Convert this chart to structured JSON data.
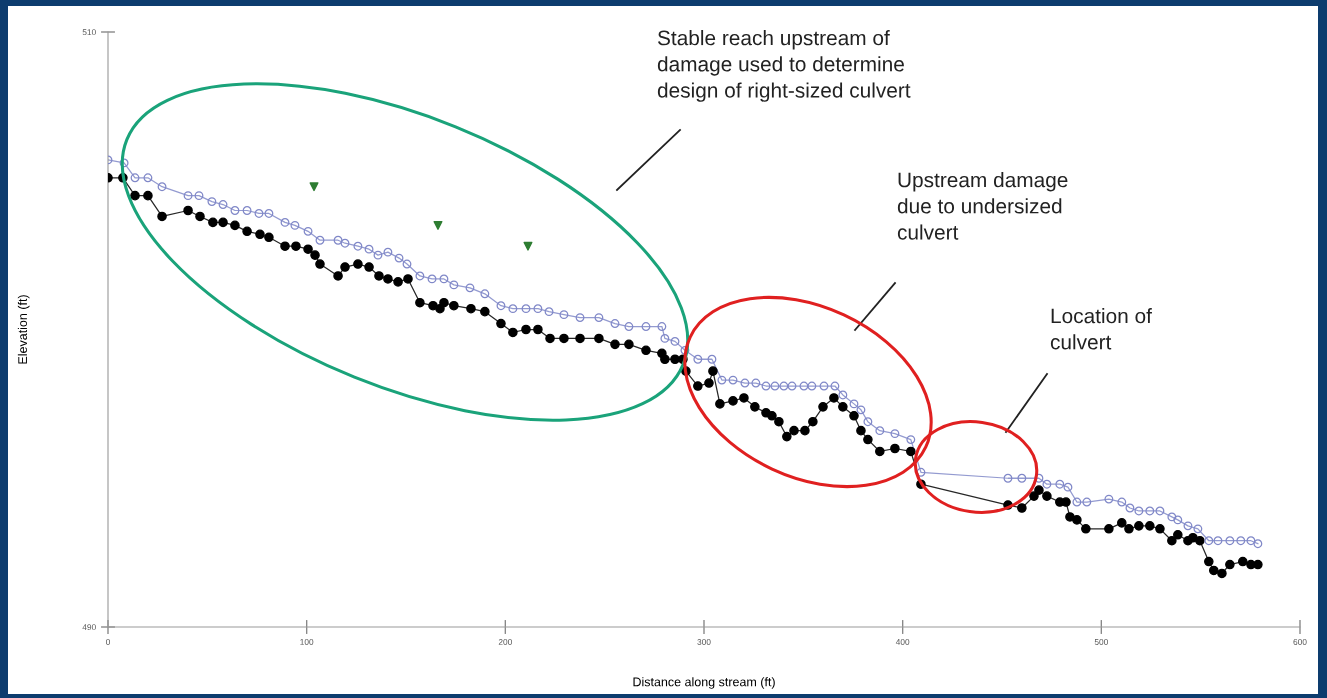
{
  "chart_data": {
    "type": "line",
    "xlabel": "Distance along stream (ft)",
    "ylabel": "Elevation (ft)",
    "xlim": [
      0,
      600
    ],
    "xticks": [
      0,
      100,
      200,
      300,
      400,
      500,
      600
    ],
    "ylim": [
      490,
      510
    ],
    "yticks": [
      490,
      510
    ],
    "grid": false,
    "legend": false,
    "series": [
      {
        "marker": "circle",
        "color": "#000000",
        "x": [
          0,
          7.5,
          13.6,
          20.1,
          27.2,
          40.3,
          46.3,
          52.8,
          57.9,
          63.9,
          70,
          76.5,
          81,
          89.1,
          94.6,
          100.7,
          104.2,
          106.7,
          115.8,
          119.3,
          125.8,
          131.4,
          136.4,
          140.9,
          146,
          151,
          157,
          163.6,
          167.1,
          169.1,
          174.1,
          182.7,
          189.7,
          197.8,
          203.8,
          210.4,
          216.4,
          222.5,
          229.5,
          237.6,
          247.1,
          255.2,
          262.2,
          270.8,
          278.8,
          280.3,
          285.4,
          289.4,
          290.9,
          296.9,
          302.5,
          304.5,
          308,
          314.6,
          320.1,
          325.6,
          331.2,
          334.2,
          337.7,
          341.7,
          345.3,
          350.8,
          354.8,
          359.9,
          365.4,
          369.9,
          375.5,
          379,
          382.5,
          388.5,
          396.1,
          404.1,
          409.2,
          453,
          460,
          466.1,
          468.6,
          472.6,
          479.1,
          482.2,
          484.2,
          487.7,
          492.2,
          503.8,
          510.3,
          513.9,
          518.9,
          524.4,
          529.5,
          535.5,
          538.5,
          543.6,
          546.1,
          549.6,
          554.1,
          556.6,
          560.7,
          564.7,
          571.2,
          575.3,
          578.8
        ],
        "values": [
          505.1,
          505.1,
          504.5,
          504.5,
          503.8,
          504,
          503.8,
          503.6,
          503.6,
          503.5,
          503.3,
          503.2,
          503.1,
          502.8,
          502.8,
          502.7,
          502.5,
          502.2,
          501.8,
          502.1,
          502.2,
          502.1,
          501.8,
          501.7,
          501.6,
          501.7,
          500.9,
          500.8,
          500.7,
          500.9,
          500.8,
          500.7,
          500.6,
          500.2,
          499.9,
          500,
          500,
          499.7,
          499.7,
          499.7,
          499.7,
          499.5,
          499.5,
          499.3,
          499.2,
          499,
          499,
          499,
          498.6,
          498.1,
          498.2,
          498.6,
          497.5,
          497.6,
          497.7,
          497.4,
          497.2,
          497.1,
          496.9,
          496.4,
          496.6,
          496.6,
          496.9,
          497.4,
          497.7,
          497.4,
          497.1,
          496.6,
          496.3,
          495.9,
          496,
          495.9,
          494.8,
          494.1,
          494,
          494.4,
          494.6,
          494.4,
          494.2,
          494.2,
          493.7,
          493.6,
          493.3,
          493.3,
          493.5,
          493.3,
          493.4,
          493.4,
          493.3,
          492.9,
          493.1,
          492.9,
          493,
          492.9,
          492.2,
          491.9,
          491.8,
          492.1,
          492.2,
          492.1,
          492.1
        ]
      },
      {
        "marker": "circle",
        "color": "#8088c8",
        "x": [
          0,
          8.1,
          13.6,
          20.1,
          27.2,
          40.3,
          45.8,
          52.3,
          57.9,
          63.9,
          70,
          76,
          81,
          89.1,
          94.1,
          100.7,
          106.7,
          115.8,
          119.3,
          125.8,
          131.4,
          135.9,
          140.9,
          146.5,
          150.5,
          157,
          163.1,
          169.1,
          174.1,
          182.2,
          189.7,
          197.8,
          203.8,
          210.4,
          216.4,
          222,
          229.5,
          237.6,
          247.1,
          255.2,
          262.2,
          270.8,
          278.8,
          280.3,
          285.4,
          290.4,
          296.9,
          304,
          309,
          314.6,
          320.6,
          326.1,
          331.2,
          335.7,
          340.2,
          344.3,
          350.3,
          354.3,
          360.4,
          365.9,
          369.9,
          375.5,
          379,
          382.5,
          388.5,
          396.1,
          404.1,
          409.2,
          453,
          460,
          468.6,
          472.6,
          479.1,
          483.2,
          487.7,
          492.7,
          503.8,
          510.3,
          514.4,
          518.9,
          524.4,
          529.5,
          535.5,
          538.5,
          543.6,
          548.6,
          554.1,
          558.7,
          564.7,
          570.2,
          575.3,
          578.8
        ],
        "values": [
          505.7,
          505.6,
          505.1,
          505.1,
          504.8,
          504.5,
          504.5,
          504.3,
          504.2,
          504,
          504,
          503.9,
          503.9,
          503.6,
          503.5,
          503.3,
          503,
          503,
          502.9,
          502.8,
          502.7,
          502.5,
          502.6,
          502.4,
          502.2,
          501.8,
          501.7,
          501.7,
          501.5,
          501.4,
          501.2,
          500.8,
          500.7,
          500.7,
          500.7,
          500.6,
          500.5,
          500.4,
          500.4,
          500.2,
          500.1,
          500.1,
          500.1,
          499.7,
          499.6,
          499.3,
          499,
          499,
          498.3,
          498.3,
          498.2,
          498.2,
          498.1,
          498.1,
          498.1,
          498.1,
          498.1,
          498.1,
          498.1,
          498.1,
          497.8,
          497.5,
          497.3,
          496.9,
          496.6,
          496.5,
          496.3,
          495.2,
          495,
          495,
          495,
          494.8,
          494.8,
          494.7,
          494.2,
          494.2,
          494.3,
          494.2,
          494,
          493.9,
          493.9,
          493.9,
          493.7,
          493.6,
          493.4,
          493.3,
          492.9,
          492.9,
          492.9,
          492.9,
          492.9,
          492.8
        ]
      },
      {
        "type": "scatter",
        "marker": "triangle",
        "color": "#2e7d32",
        "x": [
          103.7,
          166.1,
          211.4
        ],
        "values": [
          504.8,
          503.5,
          502.8
        ]
      }
    ],
    "annotations": [
      "Stable reach upstream of\ndamage used to determine\ndesign of right-sized culvert",
      "Upstream damage\ndue to undersized\nculvert",
      "Location of\nculvert"
    ]
  }
}
